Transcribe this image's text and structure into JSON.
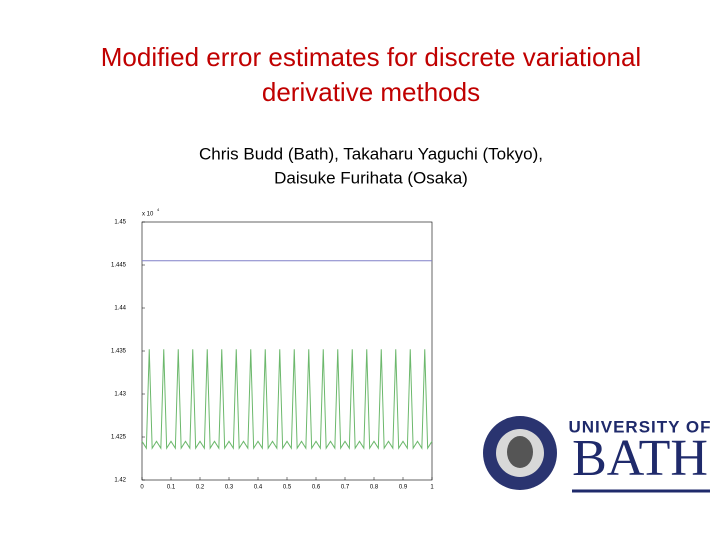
{
  "slide": {
    "title_lines": [
      "Modified error estimates for discrete variational",
      "derivative methods"
    ],
    "author_lines": [
      "Chris Budd (Bath), Takaharu Yaguchi (Tokyo),",
      "Daisuke Furihata (Osaka)"
    ],
    "logo": {
      "line1": "UNIVERSITY OF",
      "line2": "BATH"
    }
  },
  "chart_data": {
    "type": "line",
    "y_multiplier": {
      "base": "x 10",
      "exponent": "4"
    },
    "xlim": [
      0,
      1
    ],
    "xticks": [
      0,
      0.1,
      0.2,
      0.3,
      0.4,
      0.5,
      0.6,
      0.7,
      0.8,
      0.9,
      1
    ],
    "ylim": [
      1.42,
      1.45
    ],
    "yticks": [
      1.42,
      1.425,
      1.43,
      1.435,
      1.44,
      1.445,
      1.45
    ],
    "series": [
      {
        "color": "#8080c8",
        "x": [
          0,
          1
        ],
        "values": [
          1.4455,
          1.4455
        ]
      },
      {
        "color": "#6cb86c",
        "x": [
          0,
          0.015,
          0.025,
          0.035,
          0.05,
          0.065,
          0.075,
          0.085,
          0.1,
          0.115,
          0.125,
          0.135,
          0.15,
          0.165,
          0.175,
          0.185,
          0.2,
          0.215,
          0.225,
          0.235,
          0.25,
          0.265,
          0.275,
          0.285,
          0.3,
          0.315,
          0.325,
          0.335,
          0.35,
          0.365,
          0.375,
          0.385,
          0.4,
          0.415,
          0.425,
          0.435,
          0.45,
          0.465,
          0.475,
          0.485,
          0.5,
          0.515,
          0.525,
          0.535,
          0.55,
          0.565,
          0.575,
          0.585,
          0.6,
          0.615,
          0.625,
          0.635,
          0.65,
          0.665,
          0.675,
          0.685,
          0.7,
          0.715,
          0.725,
          0.735,
          0.75,
          0.765,
          0.775,
          0.785,
          0.8,
          0.815,
          0.825,
          0.835,
          0.85,
          0.865,
          0.875,
          0.885,
          0.9,
          0.915,
          0.925,
          0.935,
          0.95,
          0.965,
          0.975,
          0.985,
          1
        ],
        "values": [
          1.4245,
          1.4237,
          1.4352,
          1.4237,
          1.4245,
          1.4237,
          1.4352,
          1.4237,
          1.4245,
          1.4237,
          1.4352,
          1.4237,
          1.4245,
          1.4237,
          1.4352,
          1.4237,
          1.4245,
          1.4237,
          1.4352,
          1.4237,
          1.4245,
          1.4237,
          1.4352,
          1.4237,
          1.4245,
          1.4237,
          1.4352,
          1.4237,
          1.4245,
          1.4237,
          1.4352,
          1.4237,
          1.4245,
          1.4237,
          1.4352,
          1.4237,
          1.4245,
          1.4237,
          1.4352,
          1.4237,
          1.4245,
          1.4237,
          1.4352,
          1.4237,
          1.4245,
          1.4237,
          1.4352,
          1.4237,
          1.4245,
          1.4237,
          1.4352,
          1.4237,
          1.4245,
          1.4237,
          1.4352,
          1.4237,
          1.4245,
          1.4237,
          1.4352,
          1.4237,
          1.4245,
          1.4237,
          1.4352,
          1.4237,
          1.4245,
          1.4237,
          1.4352,
          1.4237,
          1.4245,
          1.4237,
          1.4352,
          1.4237,
          1.4245,
          1.4237,
          1.4352,
          1.4237,
          1.4245,
          1.4237,
          1.4352,
          1.4237,
          1.4245
        ]
      }
    ]
  }
}
